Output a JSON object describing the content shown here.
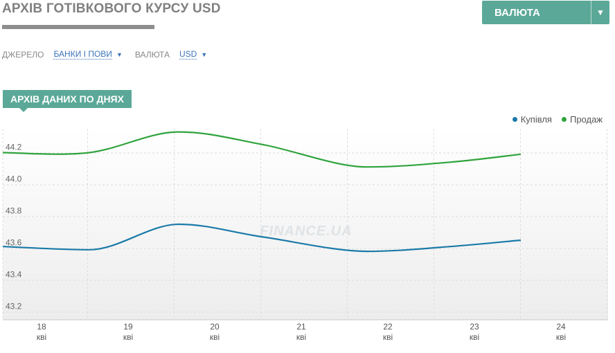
{
  "header": {
    "title": "АРХІВ ГОТІВКОВОГО КУРСУ USD",
    "currency_button": "ВАЛЮТА",
    "dropdown_caret": "▼"
  },
  "filters": {
    "source_label": "ДЖЕРЕЛО",
    "source_value": "БАНКИ І ПОВИ",
    "currency_label": "ВАЛЮТА",
    "currency_value": "USD",
    "caret": "▼"
  },
  "section": {
    "tab_label": "АРХІВ ДАНИХ ПО ДНЯХ"
  },
  "colors": {
    "accent": "#5ba898",
    "buy": "#1a7aa8",
    "sell": "#2ea33c"
  },
  "watermark": "FINANCE.UA",
  "chart_data": {
    "type": "line",
    "x": [
      "18",
      "19",
      "20",
      "21",
      "22",
      "23",
      "24"
    ],
    "x_sub": [
      "кві",
      "кві",
      "кві",
      "кві",
      "кві",
      "кві",
      "кві"
    ],
    "ylim": [
      43.15,
      44.35
    ],
    "yticks": [
      43.2,
      43.4,
      43.6,
      43.8,
      44.0,
      44.2
    ],
    "ytick_labels": [
      "43.2",
      "43.4",
      "43.6",
      "43.8",
      "44.0",
      "44.2"
    ],
    "grid": true,
    "legend_position": "top-right",
    "series": [
      {
        "name": "Купівля",
        "key": "buy",
        "values": [
          43.61,
          43.59,
          43.75,
          43.67,
          43.58,
          43.61,
          43.65
        ]
      },
      {
        "name": "Продаж",
        "key": "sell",
        "values": [
          44.2,
          44.2,
          44.33,
          44.25,
          44.11,
          44.14,
          44.19
        ]
      }
    ]
  }
}
